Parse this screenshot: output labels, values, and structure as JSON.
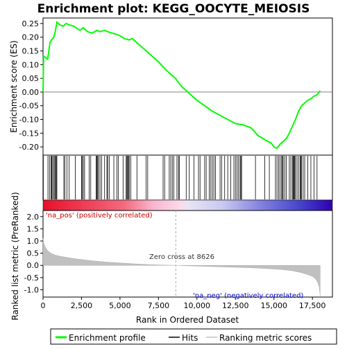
{
  "chart_data": [
    {
      "type": "line",
      "title": "Enrichment plot: KEGG_OOCYTE_MEIOSIS",
      "ylabel": "Enrichment score (ES)",
      "ylim": [
        -0.23,
        0.27
      ],
      "yticks": [
        "0.25",
        "0.20",
        "0.15",
        "0.10",
        "0.05",
        "0.00",
        "-0.05",
        "-0.10",
        "-0.15",
        "-0.20"
      ],
      "ytick_values": [
        0.25,
        0.2,
        0.15,
        0.1,
        0.05,
        0.0,
        -0.05,
        -0.1,
        -0.15,
        -0.2
      ],
      "xlim": [
        0,
        18800
      ],
      "series": [
        {
          "name": "Enrichment profile",
          "color": "#00ff00",
          "x": [
            0,
            40,
            60,
            300,
            450,
            550,
            700,
            800,
            900,
            1100,
            1300,
            1500,
            1700,
            2000,
            2400,
            2600,
            2900,
            3200,
            3500,
            3700,
            4000,
            4200,
            4500,
            4800,
            5000,
            5300,
            5600,
            5800,
            6200,
            6800,
            7500,
            8000,
            8600,
            9000,
            9500,
            10000,
            10500,
            11000,
            11500,
            12000,
            12500,
            13000,
            13500,
            14000,
            14300,
            14600,
            14800,
            15000,
            15200,
            15400,
            15600,
            15800,
            16000,
            16200,
            16400,
            16600,
            16800,
            17000,
            17200,
            17400,
            17600,
            17800,
            18000
          ],
          "y": [
            0.0,
            0.13,
            0.13,
            0.12,
            0.18,
            0.19,
            0.2,
            0.22,
            0.255,
            0.245,
            0.24,
            0.25,
            0.245,
            0.24,
            0.225,
            0.235,
            0.22,
            0.215,
            0.225,
            0.22,
            0.225,
            0.22,
            0.215,
            0.21,
            0.205,
            0.195,
            0.19,
            0.195,
            0.175,
            0.145,
            0.11,
            0.08,
            0.05,
            0.02,
            -0.005,
            -0.03,
            -0.05,
            -0.07,
            -0.085,
            -0.1,
            -0.115,
            -0.12,
            -0.13,
            -0.16,
            -0.17,
            -0.18,
            -0.185,
            -0.2,
            -0.205,
            -0.19,
            -0.18,
            -0.17,
            -0.15,
            -0.125,
            -0.1,
            -0.07,
            -0.05,
            -0.04,
            -0.03,
            -0.025,
            -0.015,
            -0.01,
            0.005
          ]
        }
      ],
      "hits_axis": {
        "name": "Hits",
        "rank": [
          20,
          320,
          420,
          520,
          560,
          620,
          700,
          760,
          820,
          850,
          900,
          1350,
          1420,
          1550,
          1700,
          2100,
          2500,
          2550,
          2620,
          2700,
          3000,
          3100,
          3450,
          3500,
          3550,
          3600,
          3700,
          3800,
          4000,
          4150,
          4200,
          4300,
          4600,
          4800,
          4900,
          5200,
          5400,
          5450,
          5500,
          5550,
          5600,
          5700,
          6100,
          6700,
          6800,
          7800,
          7900,
          8200,
          8300,
          8400,
          8500,
          8700,
          8800,
          8850,
          9300,
          9500,
          9800,
          10100,
          10200,
          10500,
          10600,
          10800,
          10900,
          11000,
          11100,
          11200,
          11500,
          11600,
          11800,
          12000,
          12200,
          12400,
          12500,
          12600,
          12700,
          12800,
          12850,
          12900,
          13800,
          14400,
          14700,
          15100,
          15200,
          15300,
          15400,
          15500,
          15550,
          15600,
          15700,
          15800,
          16000,
          16100,
          16200,
          16250,
          16300,
          16350,
          16400,
          16500,
          16600,
          16700,
          16750,
          16800,
          16900,
          17000,
          17200,
          17400,
          17600,
          17800
        ]
      },
      "ranked_list_metric": {
        "name": "Ranking metric scores",
        "ylabel": "Ranked list metric (PreRanked)",
        "xlabel": "Rank in Ordered Dataset",
        "ylim": [
          -1.3,
          2.25
        ],
        "yticks": [
          "2.0",
          "1.5",
          "1.0",
          "0.5",
          "0.0",
          "-0.5",
          "-1.0"
        ],
        "ytick_values": [
          2.0,
          1.5,
          1.0,
          0.5,
          0.0,
          -0.5,
          -1.0
        ],
        "xticks": [
          "0",
          "2,500",
          "5,000",
          "7,500",
          "10,000",
          "12,500",
          "15,000",
          "17,500"
        ],
        "xtick_values": [
          0,
          2500,
          5000,
          7500,
          10000,
          12500,
          15000,
          17500
        ],
        "x": [
          0,
          50,
          150,
          300,
          500,
          800,
          1200,
          2000,
          3000,
          4000,
          5000,
          6000,
          7000,
          8000,
          8626,
          9500,
          10500,
          11500,
          12500,
          13500,
          14500,
          15500,
          16200,
          16800,
          17200,
          17500,
          17700,
          17850,
          17950,
          18000
        ],
        "y": [
          1.1,
          0.9,
          0.75,
          0.6,
          0.5,
          0.42,
          0.36,
          0.28,
          0.2,
          0.14,
          0.1,
          0.06,
          0.03,
          0.01,
          0.0,
          -0.02,
          -0.04,
          -0.06,
          -0.08,
          -0.1,
          -0.13,
          -0.17,
          -0.22,
          -0.3,
          -0.38,
          -0.45,
          -0.55,
          -0.7,
          -0.9,
          -1.25
        ],
        "zero_cross_label": "Zero cross at 8626",
        "zero_cross": 8626,
        "pos_label": "'na_pos' (positively correlated)",
        "neg_label": "'na_neg' (negatively correlated)",
        "pos_color": "#cc0000",
        "neg_color": "#0000cc"
      },
      "legend": {
        "placement": "bottom",
        "items": [
          {
            "label": "Enrichment profile",
            "color": "#00ff00"
          },
          {
            "label": "Hits",
            "color": "#000000"
          },
          {
            "label": "Ranking metric scores",
            "color": "#c0c0c0"
          }
        ]
      },
      "grid": false
    }
  ]
}
